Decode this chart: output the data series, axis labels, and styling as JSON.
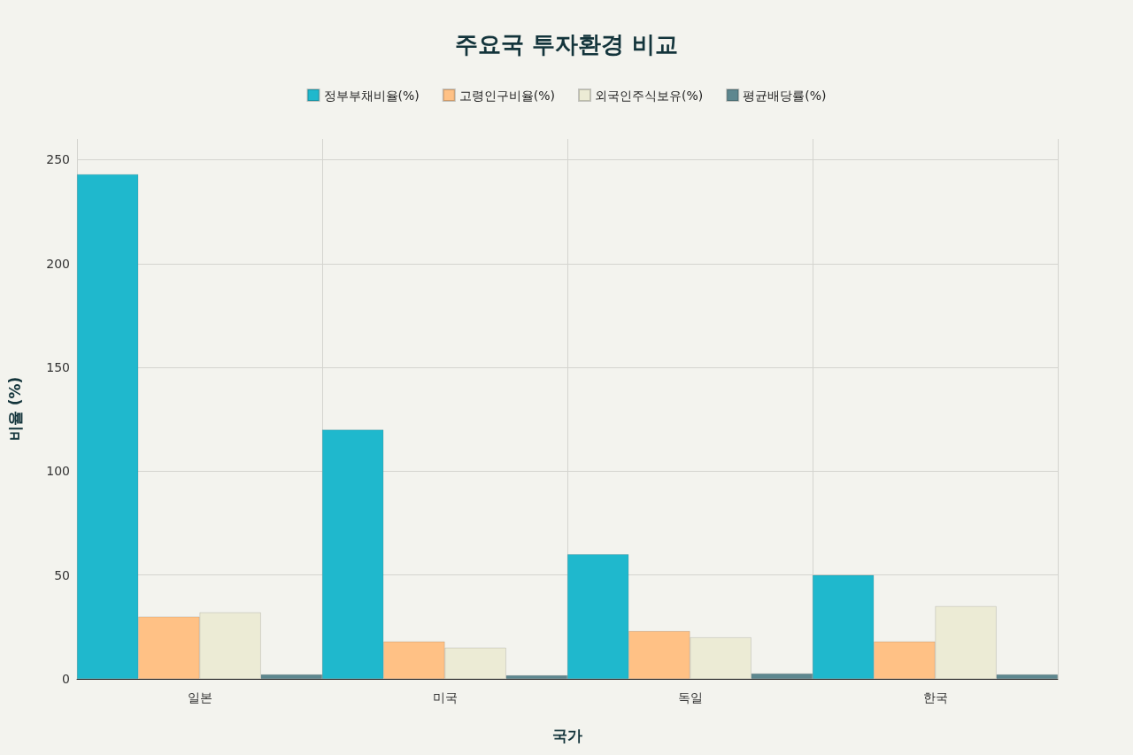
{
  "chart_data": {
    "type": "bar",
    "title": "주요국 투자환경 비교",
    "xlabel": "국가",
    "ylabel": "비율 (%)",
    "categories": [
      "일본",
      "미국",
      "독일",
      "한국"
    ],
    "series": [
      {
        "name": "정부부채비율(%)",
        "color": "#1fb8cd",
        "values": [
          243,
          120,
          60,
          50
        ]
      },
      {
        "name": "고령인구비율(%)",
        "color": "#ffc185",
        "values": [
          30,
          18,
          23,
          18
        ]
      },
      {
        "name": "외국인주식보유(%)",
        "color": "#eceBd5",
        "values": [
          32,
          15,
          20,
          35
        ]
      },
      {
        "name": "평균배당률(%)",
        "color": "#5d878f",
        "values": [
          2.1,
          1.7,
          2.6,
          2.1
        ]
      }
    ],
    "ylim": [
      0,
      260
    ],
    "yticks": [
      0,
      50,
      100,
      150,
      200,
      250
    ],
    "grid": true,
    "legend": "top"
  }
}
